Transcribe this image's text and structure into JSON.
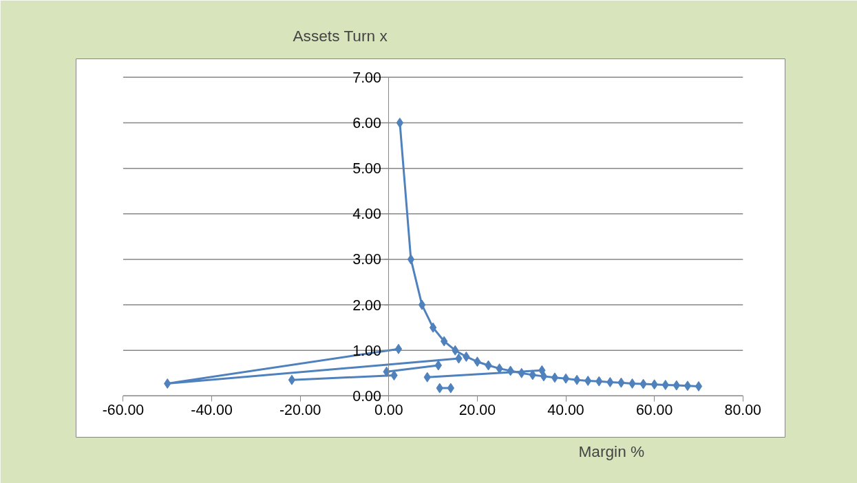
{
  "chart_data": {
    "type": "line",
    "xlabel": "Margin %",
    "ylabel": "Assets Turn x",
    "marker": "diamond",
    "grid": "y",
    "xlim": [
      -60,
      80
    ],
    "ylim": [
      0,
      7
    ],
    "xticks": [
      {
        "value": -60,
        "label": "-60.00"
      },
      {
        "value": -40,
        "label": "-40.00"
      },
      {
        "value": -20,
        "label": "-20.00"
      },
      {
        "value": 0,
        "label": "0.00"
      },
      {
        "value": 20,
        "label": "20.00"
      },
      {
        "value": 40,
        "label": "40.00"
      },
      {
        "value": 60,
        "label": "60.00"
      },
      {
        "value": 80,
        "label": "80.00"
      }
    ],
    "yticks": [
      {
        "value": 0,
        "label": "0.00"
      },
      {
        "value": 1,
        "label": "1.00"
      },
      {
        "value": 2,
        "label": "2.00"
      },
      {
        "value": 3,
        "label": "3.00"
      },
      {
        "value": 4,
        "label": "4.00"
      },
      {
        "value": 5,
        "label": "5.00"
      },
      {
        "value": 6,
        "label": "6.00"
      },
      {
        "value": 7,
        "label": "7.00"
      }
    ],
    "series": [
      {
        "color": "#4f81bd",
        "x": [
          2.5,
          5,
          7.5,
          10,
          12.5,
          15,
          17.5,
          20,
          22.5,
          25,
          27.5,
          30,
          32.5,
          35,
          37.5,
          40,
          42.5,
          45,
          47.5,
          50,
          52.5,
          55,
          57.5,
          60,
          62.5,
          65,
          67.5,
          70
        ],
        "values": [
          6.0,
          3.0,
          2.0,
          1.5,
          1.2,
          1.0,
          0.86,
          0.75,
          0.67,
          0.6,
          0.55,
          0.5,
          0.46,
          0.43,
          0.4,
          0.38,
          0.35,
          0.33,
          0.32,
          0.3,
          0.29,
          0.27,
          0.26,
          0.25,
          0.24,
          0.23,
          0.22,
          0.21
        ]
      },
      {
        "color": "#4f81bd",
        "x": [
          2.2,
          -50,
          15.8
        ],
        "values": [
          1.03,
          0.27,
          0.82
        ]
      },
      {
        "color": "#4f81bd",
        "x": [
          -0.5,
          11.2
        ],
        "values": [
          0.53,
          0.67
        ]
      },
      {
        "color": "#4f81bd",
        "x": [
          -21.9,
          1.2
        ],
        "values": [
          0.35,
          0.45
        ]
      },
      {
        "color": "#4f81bd",
        "x": [
          8.7,
          34.6
        ],
        "values": [
          0.41,
          0.56
        ]
      },
      {
        "color": "#4f81bd",
        "x": [
          11.5,
          14
        ],
        "values": [
          0.17,
          0.17
        ]
      }
    ]
  }
}
